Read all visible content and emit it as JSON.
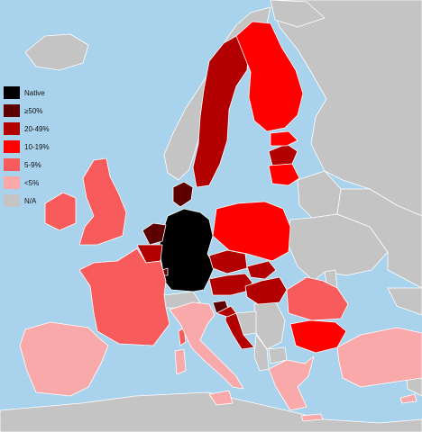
{
  "colors": {
    "sea": "#a9d2ec",
    "native": "#000000",
    "p50": "#5c0000",
    "p20_49": "#b20000",
    "p10_19": "#ff0000",
    "p5_9": "#f75b5b",
    "lt5": "#f9a9a9",
    "na": "#c4c4c4",
    "border": "#ffffff"
  },
  "legend": [
    {
      "label": "Native",
      "color": "#000000"
    },
    {
      "label": "≥50%",
      "color": "#5c0000"
    },
    {
      "label": "20-49%",
      "color": "#b20000"
    },
    {
      "label": "10-19%",
      "color": "#ff0000"
    },
    {
      "label": "5-9%",
      "color": "#f75b5b"
    },
    {
      "label": "<5%",
      "color": "#f9a9a9"
    },
    {
      "label": "N/A",
      "color": "#c4c4c4"
    }
  ]
}
